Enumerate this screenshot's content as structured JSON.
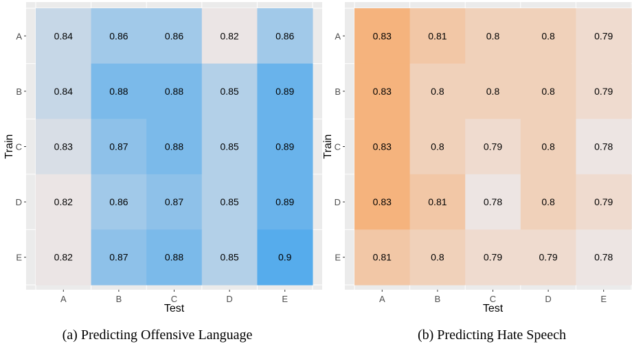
{
  "chart_data": [
    {
      "type": "heatmap",
      "caption": "(a) Predicting Offensive Language",
      "xlabel": "Test",
      "ylabel": "Train",
      "x_categories": [
        "A",
        "B",
        "C",
        "D",
        "E"
      ],
      "y_categories": [
        "A",
        "B",
        "C",
        "D",
        "E"
      ],
      "values": [
        [
          0.84,
          0.86,
          0.86,
          0.82,
          0.86
        ],
        [
          0.84,
          0.88,
          0.88,
          0.85,
          0.89
        ],
        [
          0.83,
          0.87,
          0.88,
          0.85,
          0.89
        ],
        [
          0.82,
          0.86,
          0.87,
          0.85,
          0.89
        ],
        [
          0.82,
          0.87,
          0.88,
          0.85,
          0.9
        ]
      ],
      "color_low": "#ebe5e5",
      "color_high": "#56acec",
      "value_range": [
        0.82,
        0.9
      ],
      "panel_background": "#ebebeb",
      "grid": true,
      "legend": "none"
    },
    {
      "type": "heatmap",
      "caption": "(b) Predicting Hate Speech",
      "xlabel": "Test",
      "ylabel": "Train",
      "x_categories": [
        "A",
        "B",
        "C",
        "D",
        "E"
      ],
      "y_categories": [
        "A",
        "B",
        "C",
        "D",
        "E"
      ],
      "values": [
        [
          0.83,
          0.81,
          0.8,
          0.8,
          0.79
        ],
        [
          0.83,
          0.8,
          0.8,
          0.8,
          0.79
        ],
        [
          0.83,
          0.8,
          0.79,
          0.8,
          0.78
        ],
        [
          0.83,
          0.81,
          0.78,
          0.8,
          0.79
        ],
        [
          0.81,
          0.8,
          0.79,
          0.79,
          0.78
        ]
      ],
      "color_low": "#ede5e3",
      "color_high": "#f5b37d",
      "value_range": [
        0.78,
        0.83
      ],
      "panel_background": "#ebebeb",
      "grid": true,
      "legend": "none"
    }
  ]
}
